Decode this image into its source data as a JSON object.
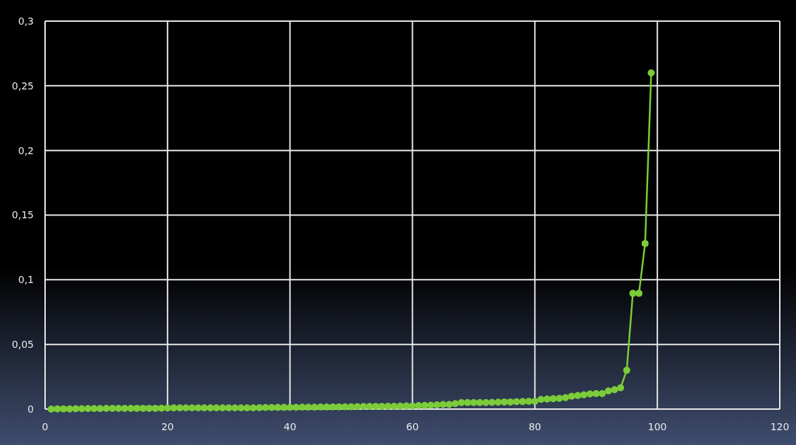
{
  "chart_data": {
    "type": "line",
    "x": [
      1,
      2,
      3,
      4,
      5,
      6,
      7,
      8,
      9,
      10,
      11,
      12,
      13,
      14,
      15,
      16,
      17,
      18,
      19,
      20,
      21,
      22,
      23,
      24,
      25,
      26,
      27,
      28,
      29,
      30,
      31,
      32,
      33,
      34,
      35,
      36,
      37,
      38,
      39,
      40,
      41,
      42,
      43,
      44,
      45,
      46,
      47,
      48,
      49,
      50,
      51,
      52,
      53,
      54,
      55,
      56,
      57,
      58,
      59,
      60,
      61,
      62,
      63,
      64,
      65,
      66,
      67,
      68,
      69,
      70,
      71,
      72,
      73,
      74,
      75,
      76,
      77,
      78,
      79,
      80,
      81,
      82,
      83,
      84,
      85,
      86,
      87,
      88,
      89,
      90,
      91,
      92,
      93,
      94,
      95,
      96,
      97,
      98,
      99
    ],
    "series": [
      {
        "color": "#7ccc3a",
        "values": [
          0,
          0.0001,
          0.0001,
          0.0002,
          0.0003,
          0.0003,
          0.0004,
          0.0004,
          0.0004,
          0.0005,
          0.0005,
          0.0005,
          0.0005,
          0.0005,
          0.0006,
          0.0006,
          0.0006,
          0.0006,
          0.0007,
          0.0008,
          0.0009,
          0.001,
          0.001,
          0.001,
          0.001,
          0.001,
          0.001,
          0.001,
          0.001,
          0.001,
          0.001,
          0.001,
          0.001,
          0.001,
          0.0011,
          0.0012,
          0.0012,
          0.0013,
          0.0013,
          0.0014,
          0.0014,
          0.0015,
          0.0015,
          0.0015,
          0.0016,
          0.0016,
          0.0017,
          0.0017,
          0.0018,
          0.0018,
          0.0019,
          0.002,
          0.002,
          0.0021,
          0.0021,
          0.0022,
          0.0022,
          0.0023,
          0.0024,
          0.0025,
          0.0027,
          0.0028,
          0.003,
          0.0033,
          0.0035,
          0.0036,
          0.0042,
          0.005,
          0.005,
          0.005,
          0.005,
          0.005,
          0.0052,
          0.0053,
          0.0055,
          0.0055,
          0.0057,
          0.0058,
          0.006,
          0.006,
          0.0075,
          0.0078,
          0.008,
          0.0083,
          0.0088,
          0.01,
          0.0105,
          0.011,
          0.0117,
          0.012,
          0.012,
          0.014,
          0.015,
          0.0165,
          0.03,
          0.0895,
          0.0895,
          0.128,
          0.26
        ]
      }
    ],
    "xlim": [
      0,
      120
    ],
    "xticks": [
      0,
      20,
      40,
      60,
      80,
      100,
      120
    ],
    "ylim": [
      0,
      0.3
    ],
    "yticks": [
      0,
      {
        "value": 0.05,
        "label": "0,05"
      },
      {
        "value": 0.1,
        "label": "0,1"
      },
      {
        "value": 0.15,
        "label": "0,15"
      },
      {
        "value": 0.2,
        "label": "0,2"
      },
      {
        "value": 0.25,
        "label": "0,25"
      },
      {
        "value": 0.3,
        "label": "0,3"
      }
    ],
    "grid": true,
    "marker": "circle",
    "line_style": "solid"
  }
}
